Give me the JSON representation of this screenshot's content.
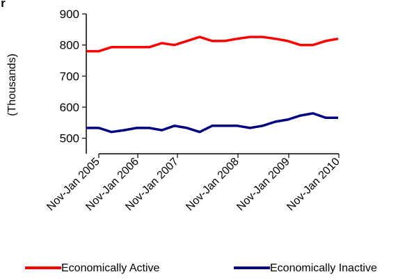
{
  "partial_title": "ugur",
  "chart_data": {
    "type": "line",
    "title": "",
    "xlabel": "",
    "ylabel": "(Thousands)",
    "ylim": [
      450,
      900
    ],
    "yticks": [
      500,
      600,
      700,
      800,
      900
    ],
    "x_tick_labels": [
      "Nov-Jan 2005",
      "Nov-Jan 2006",
      "Nov-Jan 2007",
      "Nov-Jan 2008",
      "Nov-Jan 2009",
      "Nov-Jan 2010"
    ],
    "grid": false,
    "legend_position": "bottom",
    "series": [
      {
        "name": "Economically Active",
        "color": "#ff0000",
        "values": [
          780,
          780,
          793,
          793,
          793,
          793,
          806,
          800,
          813,
          826,
          813,
          813,
          820,
          826,
          826,
          820,
          813,
          800,
          800,
          813,
          820
        ]
      },
      {
        "name": "Economically Inactive",
        "color": "#000080",
        "values": [
          533,
          533,
          520,
          526,
          533,
          533,
          526,
          540,
          533,
          520,
          540,
          540,
          540,
          533,
          540,
          553,
          560,
          573,
          580,
          566,
          566
        ]
      }
    ]
  }
}
